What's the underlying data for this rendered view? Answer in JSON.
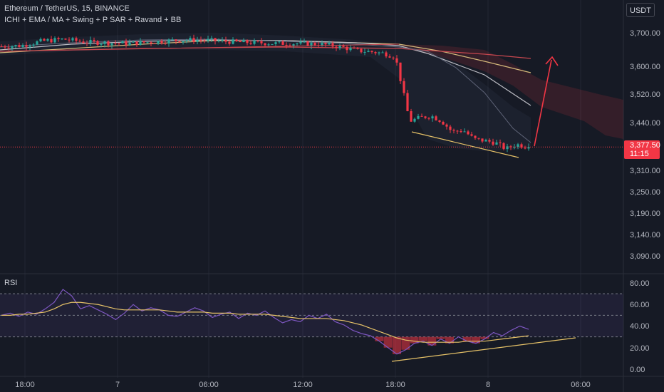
{
  "header": {
    "symbol_line": "Ethereum / TetherUS, 15, BINANCE",
    "indicators_line": "ICHI + EMA / MA + Swing + P SAR + Ravand  + BB"
  },
  "currency_button": "USDT",
  "last_price": {
    "value": "3,377.50",
    "countdown": "11:15"
  },
  "rsi_pane": {
    "label": "RSI"
  },
  "colors": {
    "background": "#161a25",
    "up": "#26a69a",
    "down": "#f23645",
    "ema": "#c8c8c8",
    "ma": "#d4b87a",
    "rsi_line": "#7e57c2",
    "rsi_ma": "#e6c268",
    "trend": "#e6c268"
  },
  "chart_data": [
    {
      "type": "candlestick",
      "y_ticks": [
        "3,700.00",
        "3,600.00",
        "3,520.00",
        "3,440.00",
        "3,310.00",
        "3,250.00",
        "3,190.00",
        "3,140.00",
        "3,090.00"
      ],
      "x_ticks": [
        "18:00",
        "7",
        "06:00",
        "12:00",
        "18:00",
        "8",
        "06:00"
      ],
      "approx_close_path": [
        [
          0,
          3660
        ],
        [
          30,
          3662
        ],
        [
          60,
          3675
        ],
        [
          90,
          3680
        ],
        [
          120,
          3672
        ],
        [
          150,
          3670
        ],
        [
          180,
          3668
        ],
        [
          210,
          3672
        ],
        [
          240,
          3676
        ],
        [
          270,
          3678
        ],
        [
          300,
          3676
        ],
        [
          330,
          3672
        ],
        [
          360,
          3670
        ],
        [
          390,
          3668
        ],
        [
          420,
          3668
        ],
        [
          450,
          3666
        ],
        [
          480,
          3658
        ],
        [
          500,
          3648
        ],
        [
          520,
          3645
        ],
        [
          540,
          3640
        ],
        [
          555,
          3630
        ],
        [
          565,
          3540
        ],
        [
          575,
          3450
        ],
        [
          590,
          3460
        ],
        [
          605,
          3465
        ],
        [
          620,
          3450
        ],
        [
          635,
          3420
        ],
        [
          650,
          3425
        ],
        [
          665,
          3400
        ],
        [
          680,
          3395
        ],
        [
          695,
          3390
        ],
        [
          710,
          3372
        ],
        [
          725,
          3385
        ],
        [
          740,
          3377.5
        ]
      ],
      "last_price": 3377.5,
      "ylim": [
        3040,
        3760
      ],
      "annotation": "projected arrow upward from 3,377.50 toward ~3,640"
    },
    {
      "type": "line",
      "title": "RSI",
      "y_ticks": [
        "80.00",
        "60.00",
        "40.00",
        "20.00",
        "0.00"
      ],
      "ylim": [
        0,
        85
      ],
      "bands": [
        30,
        50,
        70
      ],
      "series": [
        {
          "name": "RSI",
          "values": [
            50,
            52,
            49,
            53,
            51,
            56,
            62,
            74,
            68,
            56,
            59,
            55,
            51,
            46,
            52,
            60,
            54,
            57,
            55,
            50,
            49,
            53,
            57,
            54,
            48,
            51,
            53,
            47,
            52,
            50,
            54,
            48,
            43,
            46,
            44,
            50,
            47,
            51,
            44,
            41,
            36,
            33,
            31,
            26,
            20,
            14,
            18,
            24,
            26,
            22,
            28,
            24,
            30,
            26,
            24,
            28,
            34,
            31,
            36,
            40,
            37
          ]
        },
        {
          "name": "RSI MA",
          "values": [
            50,
            50,
            51,
            51,
            52,
            53,
            56,
            60,
            62,
            62,
            61,
            60,
            58,
            56,
            55,
            55,
            55,
            55,
            55,
            54,
            53,
            53,
            53,
            53,
            52,
            52,
            52,
            51,
            51,
            51,
            51,
            50,
            49,
            48,
            47,
            47,
            47,
            47,
            46,
            45,
            43,
            41,
            38,
            35,
            32,
            29,
            27,
            26,
            25,
            25,
            25,
            25,
            25,
            26,
            26,
            26,
            27,
            28,
            29,
            30,
            31
          ]
        }
      ]
    }
  ]
}
